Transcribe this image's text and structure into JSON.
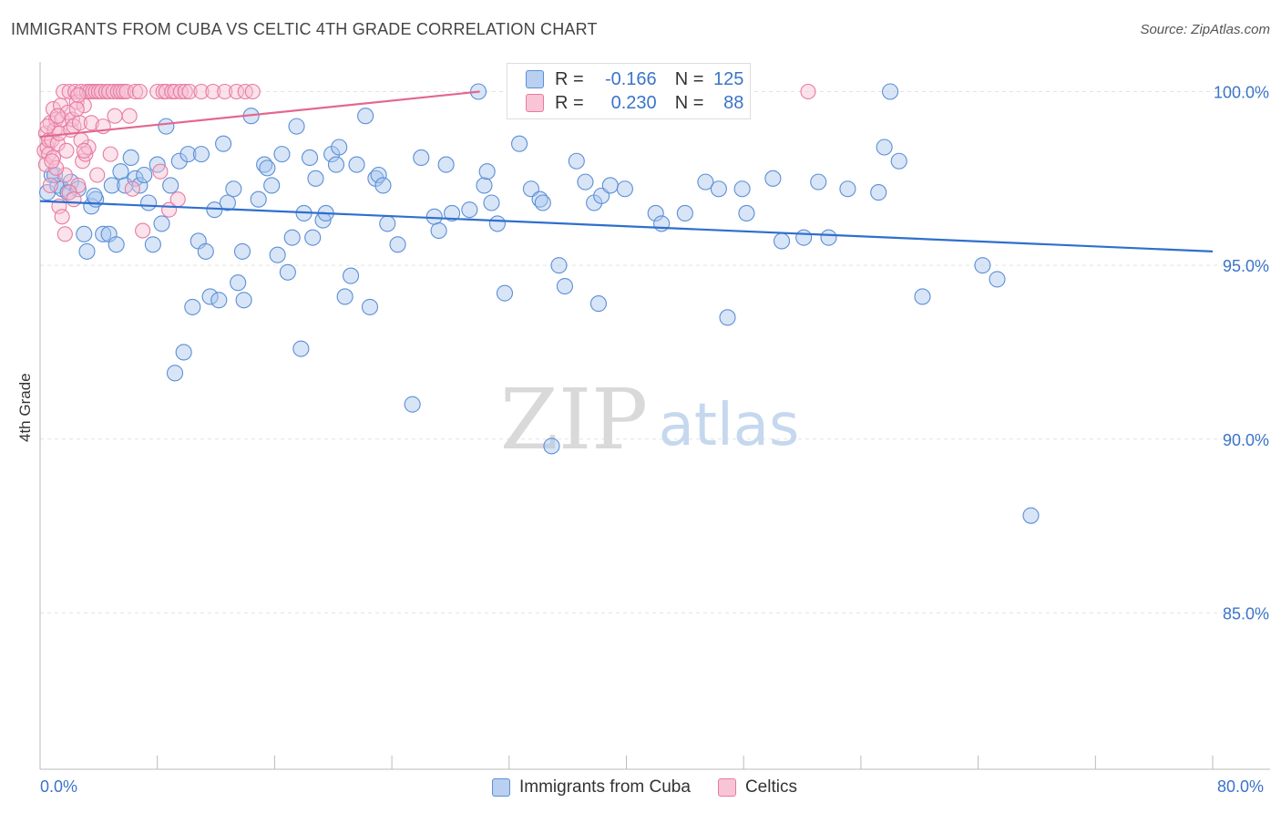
{
  "header": {
    "title": "IMMIGRANTS FROM CUBA VS CELTIC 4TH GRADE CORRELATION CHART",
    "source": "Source: ZipAtlas.com"
  },
  "watermark": {
    "zip": "ZIP",
    "atlas": "atlas"
  },
  "legend": {
    "r_label": "R =",
    "n_label": "N =",
    "entries": [
      {
        "name": "Immigrants from Cuba",
        "r": "-0.166",
        "n": "125",
        "color": "#5b8fd6",
        "fill": "#b9d0f0"
      },
      {
        "name": "Celtics",
        "r": "0.230",
        "n": "88",
        "color": "#e87aa0",
        "fill": "#f7c5d6"
      }
    ]
  },
  "chart_data": {
    "type": "scatter",
    "title": "IMMIGRANTS FROM CUBA VS CELTIC 4TH GRADE CORRELATION CHART",
    "xlabel": "",
    "ylabel": "4th Grade",
    "xlim": [
      0,
      80
    ],
    "ylim": [
      80.5,
      100.8
    ],
    "x_tick_labels": [
      "0.0%",
      "80.0%"
    ],
    "y_ticks": [
      100,
      95,
      90,
      85
    ],
    "y_tick_labels": [
      "100.0%",
      "95.0%",
      "90.0%",
      "85.0%"
    ],
    "grid": true,
    "series": [
      {
        "name": "Immigrants from Cuba",
        "color": "#5b8fd6",
        "trend": {
          "x": [
            0,
            80
          ],
          "y": [
            96.85,
            95.4
          ]
        },
        "points": [
          [
            0.5,
            97.1
          ],
          [
            0.8,
            97.6
          ],
          [
            1.2,
            97.3
          ],
          [
            1.5,
            97.2
          ],
          [
            1.9,
            97.1
          ],
          [
            2.1,
            97.4
          ],
          [
            2.6,
            97.2
          ],
          [
            3.0,
            95.9
          ],
          [
            3.2,
            95.4
          ],
          [
            3.5,
            96.7
          ],
          [
            3.8,
            96.9
          ],
          [
            4.3,
            95.9
          ],
          [
            4.7,
            95.9
          ],
          [
            4.9,
            97.3
          ],
          [
            5.2,
            95.6
          ],
          [
            5.5,
            97.7
          ],
          [
            5.8,
            97.3
          ],
          [
            6.2,
            98.1
          ],
          [
            6.5,
            97.5
          ],
          [
            6.8,
            97.3
          ],
          [
            7.1,
            97.6
          ],
          [
            7.4,
            96.8
          ],
          [
            7.7,
            95.6
          ],
          [
            8.0,
            97.9
          ],
          [
            8.3,
            96.2
          ],
          [
            8.6,
            99.0
          ],
          [
            8.9,
            97.3
          ],
          [
            9.2,
            91.9
          ],
          [
            9.5,
            98.0
          ],
          [
            9.8,
            92.5
          ],
          [
            10.1,
            98.2
          ],
          [
            10.4,
            93.8
          ],
          [
            10.8,
            95.7
          ],
          [
            11.0,
            98.2
          ],
          [
            11.3,
            95.4
          ],
          [
            11.6,
            94.1
          ],
          [
            11.9,
            96.6
          ],
          [
            12.2,
            94.0
          ],
          [
            12.5,
            98.5
          ],
          [
            12.8,
            96.8
          ],
          [
            13.2,
            97.2
          ],
          [
            13.5,
            94.5
          ],
          [
            13.8,
            95.4
          ],
          [
            13.9,
            94.0
          ],
          [
            14.4,
            99.3
          ],
          [
            14.9,
            96.9
          ],
          [
            15.3,
            97.9
          ],
          [
            15.5,
            97.8
          ],
          [
            15.8,
            97.3
          ],
          [
            16.2,
            95.3
          ],
          [
            16.5,
            98.2
          ],
          [
            16.9,
            94.8
          ],
          [
            17.2,
            95.8
          ],
          [
            17.5,
            99.0
          ],
          [
            17.8,
            92.6
          ],
          [
            18.0,
            96.5
          ],
          [
            18.4,
            98.1
          ],
          [
            18.6,
            95.8
          ],
          [
            18.8,
            97.5
          ],
          [
            19.3,
            96.3
          ],
          [
            19.5,
            96.5
          ],
          [
            19.9,
            98.2
          ],
          [
            20.2,
            97.9
          ],
          [
            20.4,
            98.4
          ],
          [
            20.8,
            94.1
          ],
          [
            21.2,
            94.7
          ],
          [
            21.6,
            97.9
          ],
          [
            22.2,
            99.3
          ],
          [
            22.5,
            93.8
          ],
          [
            22.9,
            97.5
          ],
          [
            23.1,
            97.6
          ],
          [
            23.4,
            97.3
          ],
          [
            23.7,
            96.2
          ],
          [
            24.4,
            95.6
          ],
          [
            25.4,
            91.0
          ],
          [
            26.0,
            98.1
          ],
          [
            26.9,
            96.4
          ],
          [
            27.2,
            96.0
          ],
          [
            27.7,
            97.9
          ],
          [
            28.1,
            96.5
          ],
          [
            29.3,
            96.6
          ],
          [
            29.9,
            100.0
          ],
          [
            30.3,
            97.3
          ],
          [
            30.5,
            97.7
          ],
          [
            30.8,
            96.8
          ],
          [
            31.2,
            96.2
          ],
          [
            31.7,
            94.2
          ],
          [
            32.7,
            98.5
          ],
          [
            33.5,
            97.2
          ],
          [
            34.1,
            96.9
          ],
          [
            34.3,
            96.8
          ],
          [
            34.9,
            89.8
          ],
          [
            35.4,
            95.0
          ],
          [
            35.8,
            94.4
          ],
          [
            36.6,
            98.0
          ],
          [
            37.2,
            97.4
          ],
          [
            37.8,
            96.8
          ],
          [
            38.1,
            93.9
          ],
          [
            38.3,
            97.0
          ],
          [
            38.9,
            97.3
          ],
          [
            39.9,
            97.2
          ],
          [
            42.0,
            96.5
          ],
          [
            42.4,
            96.2
          ],
          [
            44.0,
            96.5
          ],
          [
            45.4,
            97.4
          ],
          [
            46.3,
            97.2
          ],
          [
            46.9,
            93.5
          ],
          [
            47.9,
            97.2
          ],
          [
            48.2,
            96.5
          ],
          [
            50.0,
            97.5
          ],
          [
            50.6,
            95.7
          ],
          [
            52.1,
            95.8
          ],
          [
            53.1,
            97.4
          ],
          [
            53.8,
            95.8
          ],
          [
            55.1,
            97.2
          ],
          [
            57.2,
            97.1
          ],
          [
            57.6,
            98.4
          ],
          [
            58.0,
            100.0
          ],
          [
            58.6,
            98.0
          ],
          [
            60.2,
            94.1
          ],
          [
            64.3,
            95.0
          ],
          [
            65.3,
            94.6
          ],
          [
            67.6,
            87.8
          ],
          [
            1.0,
            97.6
          ],
          [
            3.7,
            97.0
          ]
        ]
      },
      {
        "name": "Celtics",
        "color": "#e87aa0",
        "trend": {
          "x": [
            0,
            30
          ],
          "y": [
            98.7,
            100.0
          ]
        },
        "points": [
          [
            0.3,
            98.3
          ],
          [
            0.4,
            98.8
          ],
          [
            0.5,
            98.4
          ],
          [
            0.6,
            98.6
          ],
          [
            0.6,
            98.2
          ],
          [
            0.7,
            99.1
          ],
          [
            0.8,
            98.6
          ],
          [
            0.9,
            99.5
          ],
          [
            1.0,
            98.9
          ],
          [
            1.1,
            99.2
          ],
          [
            1.2,
            98.5
          ],
          [
            1.3,
            98.8
          ],
          [
            1.4,
            99.6
          ],
          [
            1.5,
            99.2
          ],
          [
            1.6,
            100.0
          ],
          [
            1.7,
            97.6
          ],
          [
            1.8,
            98.3
          ],
          [
            1.9,
            99.4
          ],
          [
            2.0,
            100.0
          ],
          [
            2.1,
            98.9
          ],
          [
            2.2,
            99.2
          ],
          [
            2.3,
            99.0
          ],
          [
            2.4,
            100.0
          ],
          [
            2.5,
            99.7
          ],
          [
            2.6,
            97.3
          ],
          [
            2.7,
            99.1
          ],
          [
            2.8,
            100.0
          ],
          [
            2.9,
            98.0
          ],
          [
            3.0,
            99.6
          ],
          [
            3.1,
            98.2
          ],
          [
            3.2,
            100.0
          ],
          [
            3.3,
            98.4
          ],
          [
            3.4,
            100.0
          ],
          [
            3.5,
            99.1
          ],
          [
            3.6,
            100.0
          ],
          [
            3.8,
            100.0
          ],
          [
            3.9,
            97.6
          ],
          [
            4.0,
            100.0
          ],
          [
            4.2,
            100.0
          ],
          [
            4.3,
            99.0
          ],
          [
            4.5,
            100.0
          ],
          [
            4.7,
            100.0
          ],
          [
            4.8,
            98.2
          ],
          [
            5.0,
            100.0
          ],
          [
            5.1,
            99.3
          ],
          [
            5.3,
            100.0
          ],
          [
            5.5,
            100.0
          ],
          [
            5.7,
            100.0
          ],
          [
            5.9,
            100.0
          ],
          [
            6.1,
            99.3
          ],
          [
            6.3,
            97.2
          ],
          [
            6.5,
            100.0
          ],
          [
            6.8,
            100.0
          ],
          [
            7.0,
            96.0
          ],
          [
            8.0,
            100.0
          ],
          [
            8.2,
            97.7
          ],
          [
            8.4,
            100.0
          ],
          [
            8.6,
            100.0
          ],
          [
            8.8,
            96.6
          ],
          [
            9.0,
            100.0
          ],
          [
            9.2,
            100.0
          ],
          [
            9.4,
            96.9
          ],
          [
            9.6,
            100.0
          ],
          [
            9.9,
            100.0
          ],
          [
            10.2,
            100.0
          ],
          [
            11.0,
            100.0
          ],
          [
            11.8,
            100.0
          ],
          [
            12.6,
            100.0
          ],
          [
            13.4,
            100.0
          ],
          [
            14.0,
            100.0
          ],
          [
            14.5,
            100.0
          ],
          [
            0.4,
            97.9
          ],
          [
            0.5,
            99.0
          ],
          [
            0.7,
            97.3
          ],
          [
            0.9,
            98.1
          ],
          [
            1.1,
            97.8
          ],
          [
            1.3,
            96.7
          ],
          [
            1.5,
            96.4
          ],
          [
            1.7,
            95.9
          ],
          [
            2.0,
            97.1
          ],
          [
            2.3,
            96.9
          ],
          [
            2.5,
            99.5
          ],
          [
            2.8,
            98.6
          ],
          [
            3.0,
            98.3
          ],
          [
            52.4,
            100.0
          ],
          [
            1.2,
            99.3
          ],
          [
            0.8,
            98.0
          ],
          [
            2.6,
            99.9
          ]
        ]
      }
    ]
  }
}
